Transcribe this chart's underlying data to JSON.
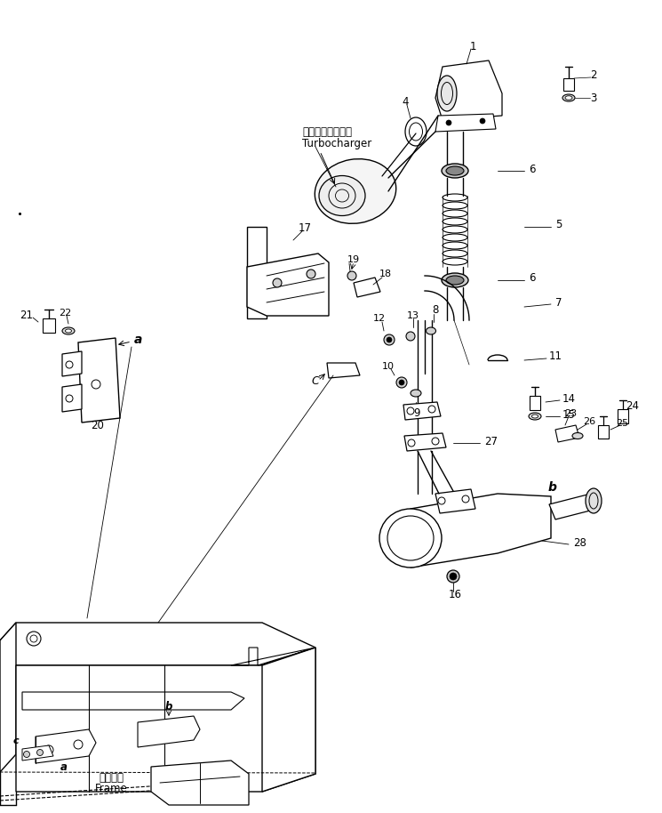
{
  "bg_color": "#ffffff",
  "line_color": "#000000",
  "turbocharger_jp": "ターボチャージャ",
  "turbocharger_en": "Turbocharger",
  "frame_jp": "フレーム",
  "frame_en": "Frame"
}
